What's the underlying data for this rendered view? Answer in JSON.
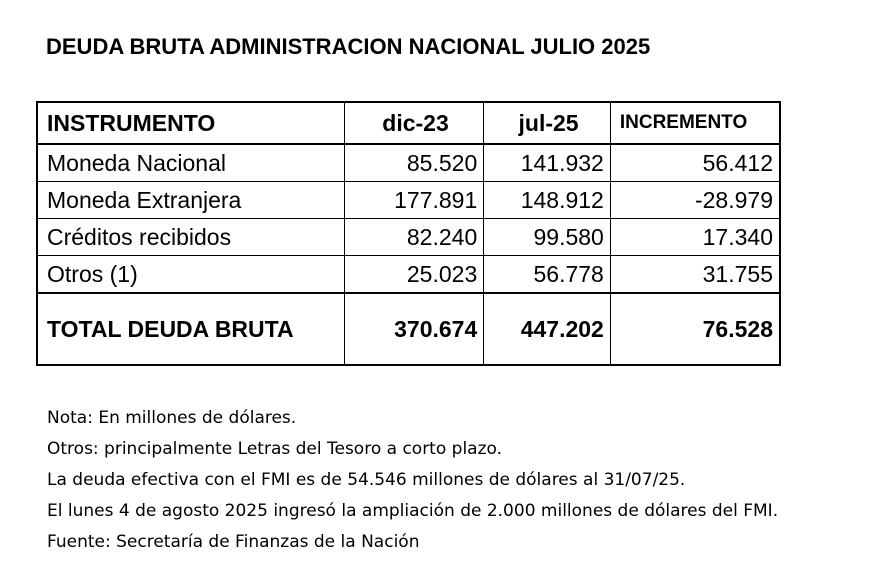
{
  "title": "DEUDA BRUTA ADMINISTRACION NACIONAL JULIO 2025",
  "table": {
    "headers": [
      "INSTRUMENTO",
      "dic-23",
      "jul-25",
      "INCREMENTO"
    ],
    "rows": [
      [
        "Moneda Nacional",
        "85.520",
        "141.932",
        "56.412"
      ],
      [
        "Moneda Extranjera",
        "177.891",
        "148.912",
        "-28.979"
      ],
      [
        "Créditos recibidos",
        "82.240",
        "99.580",
        "17.340"
      ],
      [
        "Otros (1)",
        "25.023",
        "56.778",
        "31.755"
      ]
    ],
    "total": [
      "TOTAL DEUDA BRUTA",
      "370.674",
      "447.202",
      "76.528"
    ]
  },
  "notes": [
    "Nota: En millones de dólares.",
    "Otros: principalmente Letras del Tesoro a corto plazo.",
    "La deuda efectiva con el FMI es de 54.546  millones de dólares al 31/07/25.",
    "El lunes 4 de agosto 2025 ingresó la ampliación de 2.000 millones de dólares del FMI.",
    "Fuente:  Secretaría de Finanzas de la Nación"
  ]
}
